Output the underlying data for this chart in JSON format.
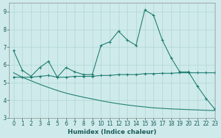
{
  "xlabel": "Humidex (Indice chaleur)",
  "xlim": [
    -0.5,
    23
  ],
  "ylim": [
    3,
    9.5
  ],
  "yticks": [
    3,
    4,
    5,
    6,
    7,
    8,
    9
  ],
  "xticks": [
    0,
    1,
    2,
    3,
    4,
    5,
    6,
    7,
    8,
    9,
    10,
    11,
    12,
    13,
    14,
    15,
    16,
    17,
    18,
    19,
    20,
    21,
    22,
    23
  ],
  "bg_color": "#ceeaea",
  "grid_color": "#b0d4d4",
  "line_color": "#1a7a6e",
  "line1_x": [
    0,
    1,
    2,
    3,
    4,
    5,
    6,
    7,
    8,
    9,
    10,
    11,
    12,
    13,
    14,
    15,
    16,
    17,
    18,
    19,
    20,
    21,
    22,
    23
  ],
  "line1_y": [
    6.8,
    5.7,
    5.35,
    5.85,
    6.2,
    5.3,
    5.85,
    5.6,
    5.45,
    5.45,
    7.1,
    7.3,
    7.9,
    7.4,
    7.1,
    9.1,
    8.8,
    7.4,
    6.4,
    5.6,
    5.6,
    4.8,
    4.1,
    3.5
  ],
  "line2_x": [
    0,
    1,
    2,
    3,
    4,
    5,
    6,
    7,
    8,
    9,
    10,
    11,
    12,
    13,
    14,
    15,
    16,
    17,
    18,
    19,
    20,
    21,
    22,
    23
  ],
  "line2_y": [
    5.3,
    5.3,
    5.3,
    5.35,
    5.4,
    5.3,
    5.3,
    5.35,
    5.35,
    5.35,
    5.4,
    5.4,
    5.45,
    5.45,
    5.45,
    5.5,
    5.5,
    5.52,
    5.52,
    5.55,
    5.55,
    5.55,
    5.55,
    5.55
  ],
  "line3_x": [
    0,
    1,
    2,
    3,
    4,
    5,
    6,
    7,
    8,
    9,
    10,
    11,
    12,
    13,
    14,
    15,
    16,
    17,
    18,
    19,
    20,
    21,
    22,
    23
  ],
  "line3_y": [
    5.55,
    5.3,
    5.1,
    4.9,
    4.72,
    4.55,
    4.4,
    4.28,
    4.17,
    4.07,
    3.97,
    3.88,
    3.8,
    3.73,
    3.67,
    3.62,
    3.57,
    3.54,
    3.51,
    3.49,
    3.47,
    3.45,
    3.43,
    3.41
  ]
}
